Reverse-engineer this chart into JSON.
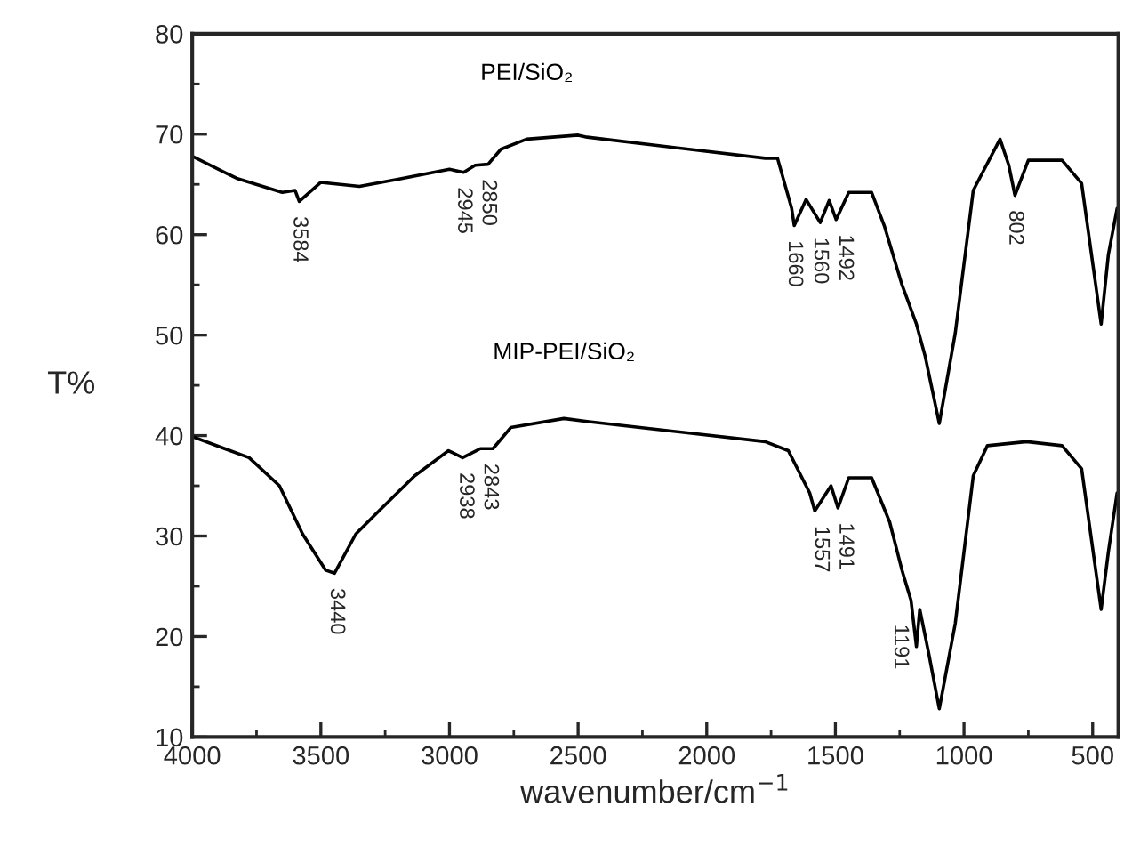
{
  "chart_data": {
    "type": "line",
    "xlabel": "wavenumber/cm$^{−1}$",
    "ylabel": "T%",
    "xlim": [
      4000,
      400
    ],
    "ylim": [
      10,
      80
    ],
    "xticks": [
      4000,
      {
        "value": 3750,
        "label": null
      },
      3500,
      {
        "value": 3250,
        "label": null
      },
      3000,
      {
        "value": 2750,
        "label": null
      },
      2500,
      {
        "value": 2250,
        "label": null
      },
      2000,
      {
        "value": 1750,
        "label": null
      },
      1500,
      {
        "value": 1250,
        "label": null
      },
      1000,
      {
        "value": 750,
        "label": null
      },
      500
    ],
    "yticks": [
      10,
      {
        "value": 15,
        "label": null
      },
      20,
      {
        "value": 25,
        "label": null
      },
      30,
      {
        "value": 35,
        "label": null
      },
      40,
      {
        "value": 45,
        "label": null
      },
      50,
      {
        "value": 55,
        "label": null
      },
      60,
      {
        "value": 65,
        "label": null
      },
      70,
      {
        "value": 75,
        "label": null
      },
      80
    ],
    "grid": false,
    "legend": false,
    "marker": "none",
    "line_style": "solid",
    "series": [
      {
        "name": "PEI/SiO₂",
        "color": "#000000",
        "x": [
          4000,
          3827,
          3650,
          3600,
          3584,
          3500,
          3350,
          3200,
          3000,
          2945,
          2900,
          2850,
          2800,
          2700,
          2500,
          2465,
          1773,
          1725,
          1670,
          1660,
          1614,
          1559,
          1524,
          1497,
          1448,
          1359,
          1310,
          1241,
          1185,
          1151,
          1096,
          1034,
          964,
          860,
          826,
          802,
          750,
          619,
          543,
          467,
          439,
          405
        ],
        "values": [
          67.8,
          65.6,
          64.2,
          64.4,
          63.3,
          65.2,
          64.8,
          65.5,
          66.5,
          66.2,
          66.9,
          67.0,
          68.5,
          69.5,
          69.9,
          69.7,
          67.6,
          67.6,
          62.6,
          60.9,
          63.5,
          61.2,
          63.4,
          61.5,
          64.2,
          64.2,
          60.9,
          55.0,
          51.1,
          47.9,
          41.2,
          50.2,
          64.4,
          69.5,
          66.9,
          63.9,
          67.4,
          67.4,
          65.1,
          51.1,
          58.0,
          62.6
        ]
      },
      {
        "name": "MIP-PEI/SiO₂",
        "color": "#000000",
        "x": [
          4000,
          3779,
          3661,
          3571,
          3481,
          3447,
          3364,
          3274,
          3135,
          3004,
          2949,
          2880,
          2831,
          2762,
          2555,
          2465,
          1773,
          1683,
          1600,
          1580,
          1517,
          1490,
          1448,
          1359,
          1289,
          1241,
          1206,
          1185,
          1172,
          1137,
          1096,
          1034,
          964,
          909,
          757,
          619,
          543,
          467,
          439,
          405
        ],
        "values": [
          39.9,
          37.8,
          35.0,
          30.2,
          26.6,
          26.3,
          30.2,
          32.5,
          36.0,
          38.5,
          37.8,
          38.7,
          38.7,
          40.8,
          41.7,
          41.4,
          39.4,
          38.5,
          34.3,
          32.5,
          35.0,
          32.8,
          35.8,
          35.8,
          31.4,
          26.6,
          23.6,
          19.0,
          22.7,
          18.3,
          12.8,
          21.3,
          36.0,
          39.0,
          39.4,
          39.0,
          36.7,
          22.7,
          28.4,
          34.3
        ]
      }
    ],
    "annotations": [
      {
        "text": "3584",
        "x": 3584,
        "y": 63.3
      },
      {
        "text": "2945",
        "x": 2945,
        "y": 66.2
      },
      {
        "text": "2850",
        "x": 2850,
        "y": 67.0
      },
      {
        "text": "1660",
        "x": 1660,
        "y": 60.9
      },
      {
        "text": "1560",
        "x": 1560,
        "y": 61.2
      },
      {
        "text": "1492",
        "x": 1492,
        "y": 61.5
      },
      {
        "text": "802",
        "x": 802,
        "y": 63.9
      },
      {
        "text": "3440",
        "x": 3440,
        "y": 26.3
      },
      {
        "text": "2938",
        "x": 2938,
        "y": 37.8
      },
      {
        "text": "2843",
        "x": 2843,
        "y": 38.7
      },
      {
        "text": "1557",
        "x": 1557,
        "y": 32.5
      },
      {
        "text": "1491",
        "x": 1491,
        "y": 32.8
      },
      {
        "text": "1191",
        "x": 1191,
        "y": 22.7
      }
    ]
  }
}
